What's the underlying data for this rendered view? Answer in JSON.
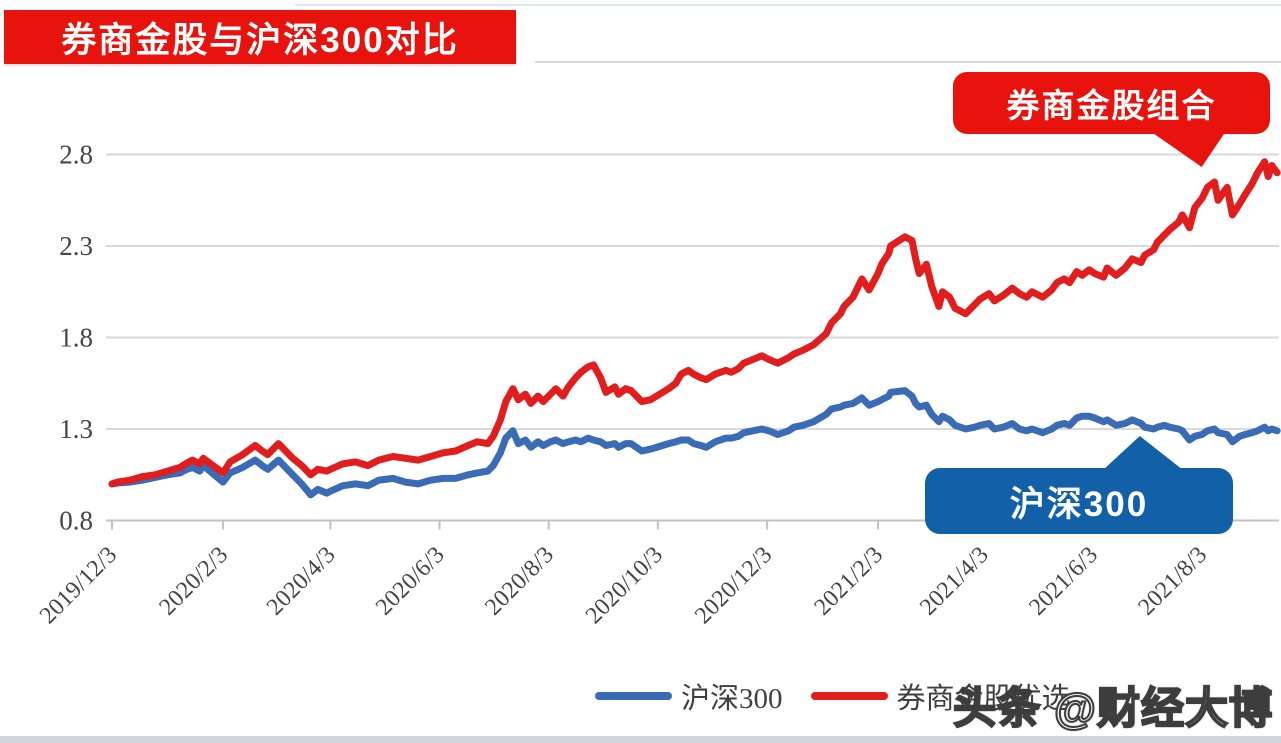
{
  "title": "券商金股与沪深300对比",
  "callouts": {
    "gold_label": "券商金股组合",
    "csi300_label": "沪深300"
  },
  "watermark": "头条 @财经大博",
  "colors": {
    "banner_red": "#e8130c",
    "callout_blue": "#1261a8",
    "line_red": "#e11d1d",
    "line_blue": "#3a6cb5",
    "gridline": "#d9d9d9",
    "axis": "#c2c2c2",
    "axis_text": "#454545"
  },
  "chart_data": {
    "type": "line",
    "title": "券商金股与沪深300对比",
    "xlabel": "",
    "ylabel": "",
    "ylim": [
      0.8,
      2.8
    ],
    "yticks": [
      0.8,
      1.3,
      1.8,
      2.3,
      2.8
    ],
    "xticks": [
      "2019/12/3",
      "2020/2/3",
      "2020/4/3",
      "2020/6/3",
      "2020/8/3",
      "2020/10/3",
      "2020/12/3",
      "2021/2/3",
      "2021/4/3",
      "2021/6/3",
      "2021/8/3"
    ],
    "x_label_rotation": -45,
    "grid": true,
    "legend_position": "bottom",
    "series": [
      {
        "name": "沪深300",
        "color": "#3a6cb5"
      },
      {
        "name": "券商金股优选",
        "color": "#e11d1d"
      }
    ],
    "points_columns": [
      "date",
      "沪深300",
      "券商金股优选"
    ],
    "points": [
      [
        "2019/12/3",
        1.0,
        1.0
      ],
      [
        "2019/12/6",
        1.005,
        1.01
      ],
      [
        "2019/12/13",
        1.01,
        1.02
      ],
      [
        "2019/12/20",
        1.02,
        1.04
      ],
      [
        "2019/12/27",
        1.035,
        1.05
      ],
      [
        "2020/1/3",
        1.05,
        1.07
      ],
      [
        "2020/1/10",
        1.06,
        1.09
      ],
      [
        "2020/1/14",
        1.08,
        1.115
      ],
      [
        "2020/1/17",
        1.09,
        1.13
      ],
      [
        "2020/1/21",
        1.07,
        1.11
      ],
      [
        "2020/1/23",
        1.1,
        1.14
      ],
      [
        "2020/2/3",
        1.01,
        1.06
      ],
      [
        "2020/2/7",
        1.06,
        1.12
      ],
      [
        "2020/2/14",
        1.09,
        1.16
      ],
      [
        "2020/2/21",
        1.13,
        1.21
      ],
      [
        "2020/2/25",
        1.1,
        1.18
      ],
      [
        "2020/2/28",
        1.08,
        1.16
      ],
      [
        "2020/3/5",
        1.13,
        1.22
      ],
      [
        "2020/3/10",
        1.08,
        1.17
      ],
      [
        "2020/3/13",
        1.05,
        1.14
      ],
      [
        "2020/3/18",
        1.0,
        1.1
      ],
      [
        "2020/3/23",
        0.94,
        1.05
      ],
      [
        "2020/3/27",
        0.97,
        1.08
      ],
      [
        "2020/4/1",
        0.95,
        1.07
      ],
      [
        "2020/4/3",
        0.96,
        1.08
      ],
      [
        "2020/4/10",
        0.99,
        1.11
      ],
      [
        "2020/4/17",
        1.0,
        1.12
      ],
      [
        "2020/4/24",
        0.99,
        1.1
      ],
      [
        "2020/4/30",
        1.02,
        1.13
      ],
      [
        "2020/5/8",
        1.03,
        1.15
      ],
      [
        "2020/5/15",
        1.01,
        1.14
      ],
      [
        "2020/5/22",
        1.0,
        1.13
      ],
      [
        "2020/5/29",
        1.02,
        1.15
      ],
      [
        "2020/6/5",
        1.03,
        1.17
      ],
      [
        "2020/6/12",
        1.03,
        1.18
      ],
      [
        "2020/6/19",
        1.05,
        1.21
      ],
      [
        "2020/6/24",
        1.06,
        1.23
      ],
      [
        "2020/6/30",
        1.07,
        1.22
      ],
      [
        "2020/7/3",
        1.1,
        1.26
      ],
      [
        "2020/7/7",
        1.17,
        1.35
      ],
      [
        "2020/7/10",
        1.25,
        1.45
      ],
      [
        "2020/7/14",
        1.29,
        1.52
      ],
      [
        "2020/7/17",
        1.22,
        1.46
      ],
      [
        "2020/7/21",
        1.24,
        1.49
      ],
      [
        "2020/7/24",
        1.2,
        1.44
      ],
      [
        "2020/7/28",
        1.23,
        1.48
      ],
      [
        "2020/7/31",
        1.21,
        1.45
      ],
      [
        "2020/8/4",
        1.23,
        1.49
      ],
      [
        "2020/8/7",
        1.24,
        1.52
      ],
      [
        "2020/8/11",
        1.22,
        1.48
      ],
      [
        "2020/8/14",
        1.23,
        1.53
      ],
      [
        "2020/8/18",
        1.24,
        1.58
      ],
      [
        "2020/8/21",
        1.23,
        1.61
      ],
      [
        "2020/8/25",
        1.25,
        1.64
      ],
      [
        "2020/8/28",
        1.24,
        1.65
      ],
      [
        "2020/9/1",
        1.23,
        1.58
      ],
      [
        "2020/9/4",
        1.21,
        1.5
      ],
      [
        "2020/9/9",
        1.22,
        1.53
      ],
      [
        "2020/9/11",
        1.2,
        1.49
      ],
      [
        "2020/9/15",
        1.22,
        1.52
      ],
      [
        "2020/9/18",
        1.22,
        1.51
      ],
      [
        "2020/9/24",
        1.18,
        1.45
      ],
      [
        "2020/9/29",
        1.19,
        1.46
      ],
      [
        "2020/10/9",
        1.22,
        1.52
      ],
      [
        "2020/10/13",
        1.23,
        1.55
      ],
      [
        "2020/10/16",
        1.24,
        1.6
      ],
      [
        "2020/10/20",
        1.24,
        1.62
      ],
      [
        "2020/10/23",
        1.22,
        1.6
      ],
      [
        "2020/10/27",
        1.21,
        1.58
      ],
      [
        "2020/10/30",
        1.2,
        1.57
      ],
      [
        "2020/11/4",
        1.23,
        1.6
      ],
      [
        "2020/11/10",
        1.25,
        1.62
      ],
      [
        "2020/11/13",
        1.25,
        1.61
      ],
      [
        "2020/11/17",
        1.26,
        1.63
      ],
      [
        "2020/11/20",
        1.28,
        1.66
      ],
      [
        "2020/11/25",
        1.29,
        1.68
      ],
      [
        "2020/11/30",
        1.3,
        1.7
      ],
      [
        "2020/12/4",
        1.29,
        1.68
      ],
      [
        "2020/12/9",
        1.27,
        1.66
      ],
      [
        "2020/12/15",
        1.29,
        1.69
      ],
      [
        "2020/12/18",
        1.31,
        1.71
      ],
      [
        "2020/12/23",
        1.32,
        1.73
      ],
      [
        "2020/12/29",
        1.34,
        1.76
      ],
      [
        "2021/1/5",
        1.38,
        1.82
      ],
      [
        "2021/1/8",
        1.41,
        1.88
      ],
      [
        "2021/1/13",
        1.42,
        1.93
      ],
      [
        "2021/1/15",
        1.43,
        1.97
      ],
      [
        "2021/1/20",
        1.44,
        2.02
      ],
      [
        "2021/1/25",
        1.47,
        2.12
      ],
      [
        "2021/1/29",
        1.43,
        2.06
      ],
      [
        "2021/2/3",
        1.45,
        2.15
      ],
      [
        "2021/2/5",
        1.46,
        2.2
      ],
      [
        "2021/2/9",
        1.48,
        2.26
      ],
      [
        "2021/2/10",
        1.5,
        2.3
      ],
      [
        "2021/2/18",
        1.51,
        2.35
      ],
      [
        "2021/2/22",
        1.48,
        2.33
      ],
      [
        "2021/2/24",
        1.44,
        2.23
      ],
      [
        "2021/2/26",
        1.42,
        2.15
      ],
      [
        "2021/3/2",
        1.43,
        2.2
      ],
      [
        "2021/3/5",
        1.38,
        2.08
      ],
      [
        "2021/3/9",
        1.34,
        1.97
      ],
      [
        "2021/3/11",
        1.37,
        2.05
      ],
      [
        "2021/3/15",
        1.35,
        2.02
      ],
      [
        "2021/3/18",
        1.32,
        1.96
      ],
      [
        "2021/3/24",
        1.3,
        1.93
      ],
      [
        "2021/3/29",
        1.31,
        1.98
      ],
      [
        "2021/4/1",
        1.32,
        2.01
      ],
      [
        "2021/4/6",
        1.33,
        2.04
      ],
      [
        "2021/4/9",
        1.3,
        2.0
      ],
      [
        "2021/4/14",
        1.31,
        2.03
      ],
      [
        "2021/4/19",
        1.33,
        2.07
      ],
      [
        "2021/4/23",
        1.3,
        2.04
      ],
      [
        "2021/4/27",
        1.29,
        2.02
      ],
      [
        "2021/4/30",
        1.3,
        2.05
      ],
      [
        "2021/5/6",
        1.28,
        2.02
      ],
      [
        "2021/5/11",
        1.3,
        2.06
      ],
      [
        "2021/5/14",
        1.32,
        2.1
      ],
      [
        "2021/5/18",
        1.33,
        2.12
      ],
      [
        "2021/5/21",
        1.32,
        2.1
      ],
      [
        "2021/5/25",
        1.36,
        2.16
      ],
      [
        "2021/5/28",
        1.37,
        2.14
      ],
      [
        "2021/6/1",
        1.37,
        2.17
      ],
      [
        "2021/6/4",
        1.36,
        2.15
      ],
      [
        "2021/6/9",
        1.34,
        2.13
      ],
      [
        "2021/6/11",
        1.35,
        2.18
      ],
      [
        "2021/6/16",
        1.32,
        2.14
      ],
      [
        "2021/6/21",
        1.33,
        2.18
      ],
      [
        "2021/6/25",
        1.35,
        2.23
      ],
      [
        "2021/6/30",
        1.33,
        2.21
      ],
      [
        "2021/7/2",
        1.31,
        2.25
      ],
      [
        "2021/7/7",
        1.3,
        2.28
      ],
      [
        "2021/7/9",
        1.31,
        2.32
      ],
      [
        "2021/7/13",
        1.32,
        2.36
      ],
      [
        "2021/7/16",
        1.31,
        2.39
      ],
      [
        "2021/7/21",
        1.3,
        2.43
      ],
      [
        "2021/7/23",
        1.29,
        2.47
      ],
      [
        "2021/7/27",
        1.24,
        2.4
      ],
      [
        "2021/7/30",
        1.26,
        2.51
      ],
      [
        "2021/8/3",
        1.27,
        2.56
      ],
      [
        "2021/8/6",
        1.29,
        2.62
      ],
      [
        "2021/8/10",
        1.3,
        2.65
      ],
      [
        "2021/8/12",
        1.28,
        2.55
      ],
      [
        "2021/8/17",
        1.27,
        2.62
      ],
      [
        "2021/8/20",
        1.23,
        2.47
      ],
      [
        "2021/8/24",
        1.26,
        2.53
      ],
      [
        "2021/8/27",
        1.27,
        2.58
      ],
      [
        "2021/8/31",
        1.28,
        2.64
      ],
      [
        "2021/9/3",
        1.29,
        2.7
      ],
      [
        "2021/9/7",
        1.31,
        2.76
      ],
      [
        "2021/9/9",
        1.29,
        2.68
      ],
      [
        "2021/9/11",
        1.3,
        2.74
      ],
      [
        "2021/9/14",
        1.29,
        2.7
      ]
    ]
  }
}
